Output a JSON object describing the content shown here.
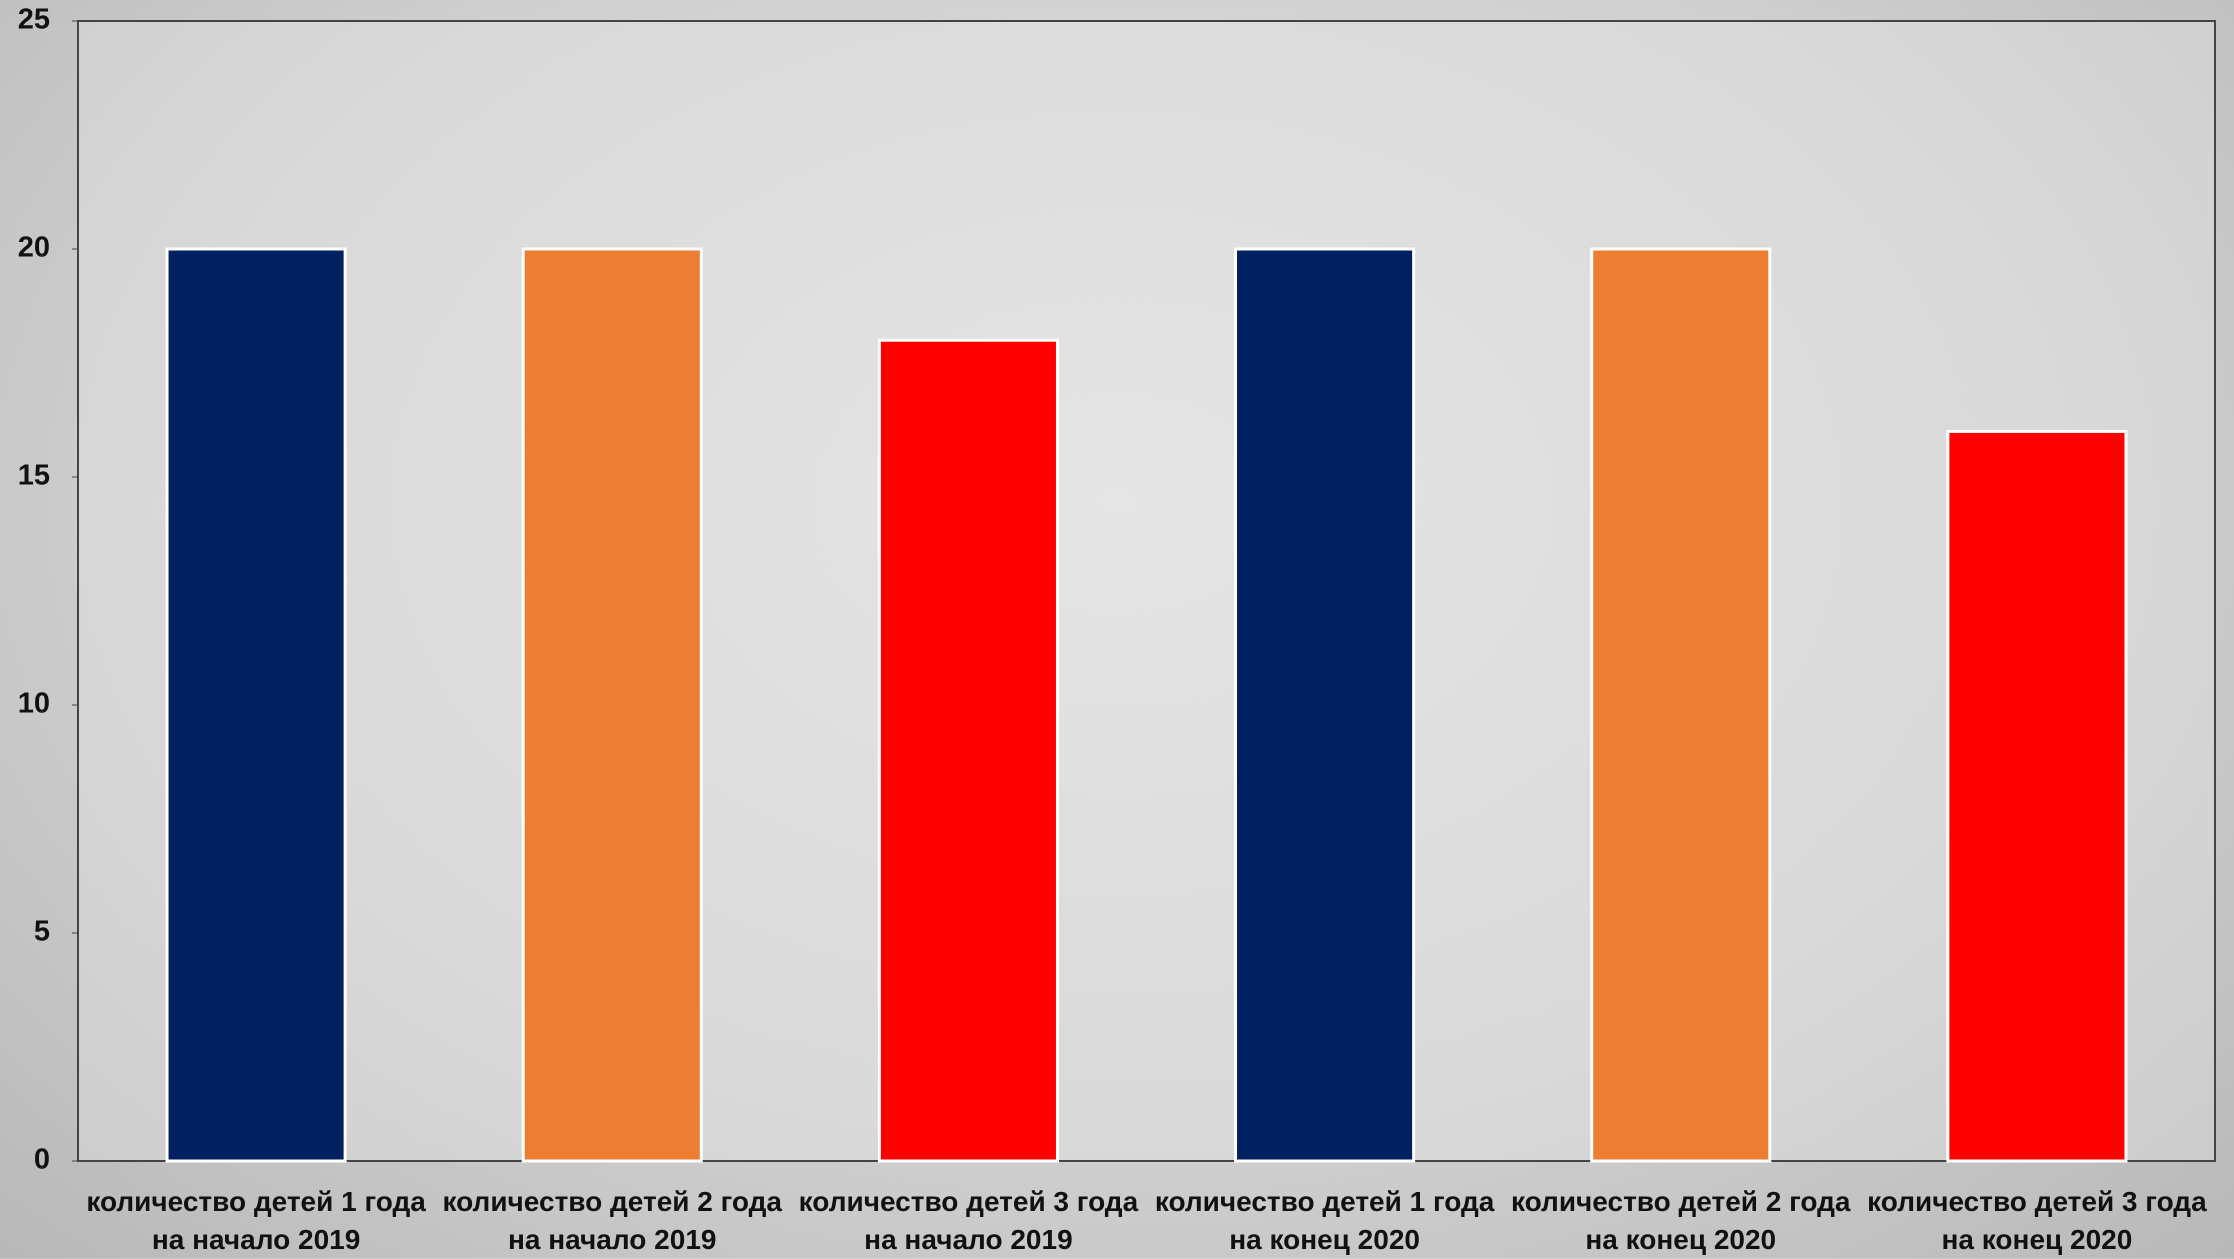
{
  "chart_data": {
    "type": "bar",
    "categories": [
      "количество детей 1 года на начало 2019",
      "количество детей 2 года на начало 2019",
      "количество детей 3 года на начало 2019",
      "количество детей 1 года на конец 2020",
      "количество детей 2 года на конец 2020",
      "количество детей 3 года на конец 2020"
    ],
    "values": [
      20,
      20,
      18,
      20,
      20,
      16
    ],
    "colors": [
      "#002060",
      "#ed7d31",
      "#ff0000",
      "#002060",
      "#ed7d31",
      "#ff0000"
    ],
    "ylim": [
      0,
      25
    ],
    "yticks": [
      0,
      5,
      10,
      15,
      20,
      25
    ],
    "grid": false
  }
}
